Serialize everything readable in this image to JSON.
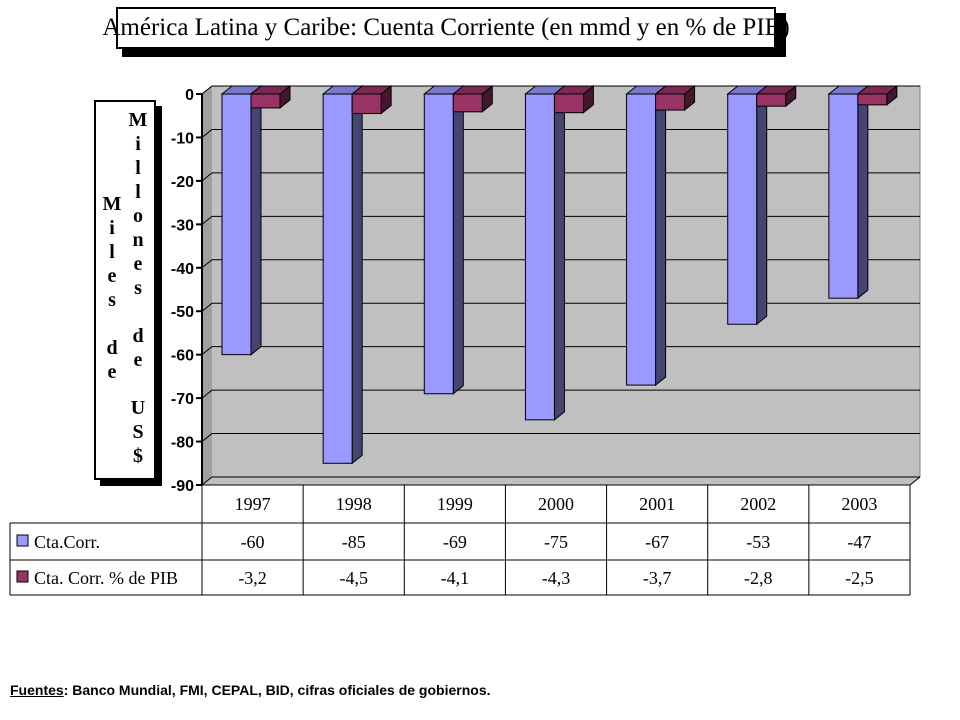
{
  "title": "América Latina y Caribe: Cuenta Corriente (en mmd y en % de PIB)",
  "y_axis_label": {
    "line1": "Millones de US$",
    "line2": "Miles de"
  },
  "footer": {
    "label": "Fuentes",
    "text": ":  Banco Mundial, FMI, CEPAL, BID, cifras oficiales de gobiernos."
  },
  "colors": {
    "series1": "#9999ff",
    "series2": "#993366",
    "plot_bg": "#c0c0c0"
  },
  "chart_data": {
    "type": "bar",
    "title": "América Latina y Caribe: Cuenta Corriente (en mmd y en % de PIB)",
    "categories": [
      "1997",
      "1998",
      "1999",
      "2000",
      "2001",
      "2002",
      "2003"
    ],
    "series": [
      {
        "name": "Cta.Corr.",
        "values": [
          -60,
          -85,
          -69,
          -75,
          -67,
          -53,
          -47
        ],
        "labels": [
          "-60",
          "-85",
          "-69",
          "-75",
          "-67",
          "-53",
          "-47"
        ]
      },
      {
        "name": "Cta. Corr. % de PIB",
        "values": [
          -3.2,
          -4.5,
          -4.1,
          -4.3,
          -3.7,
          -2.8,
          -2.5
        ],
        "labels": [
          "-3,2",
          "-4,5",
          "-4,1",
          "-4,3",
          "-3,7",
          "-2,8",
          "-2,5"
        ]
      }
    ],
    "yticks": [
      "0",
      "-10",
      "-20",
      "-30",
      "-40",
      "-50",
      "-60",
      "-70",
      "-80",
      "-90"
    ],
    "ylim": [
      -90,
      0
    ],
    "grid": true,
    "legend": "data-table"
  }
}
